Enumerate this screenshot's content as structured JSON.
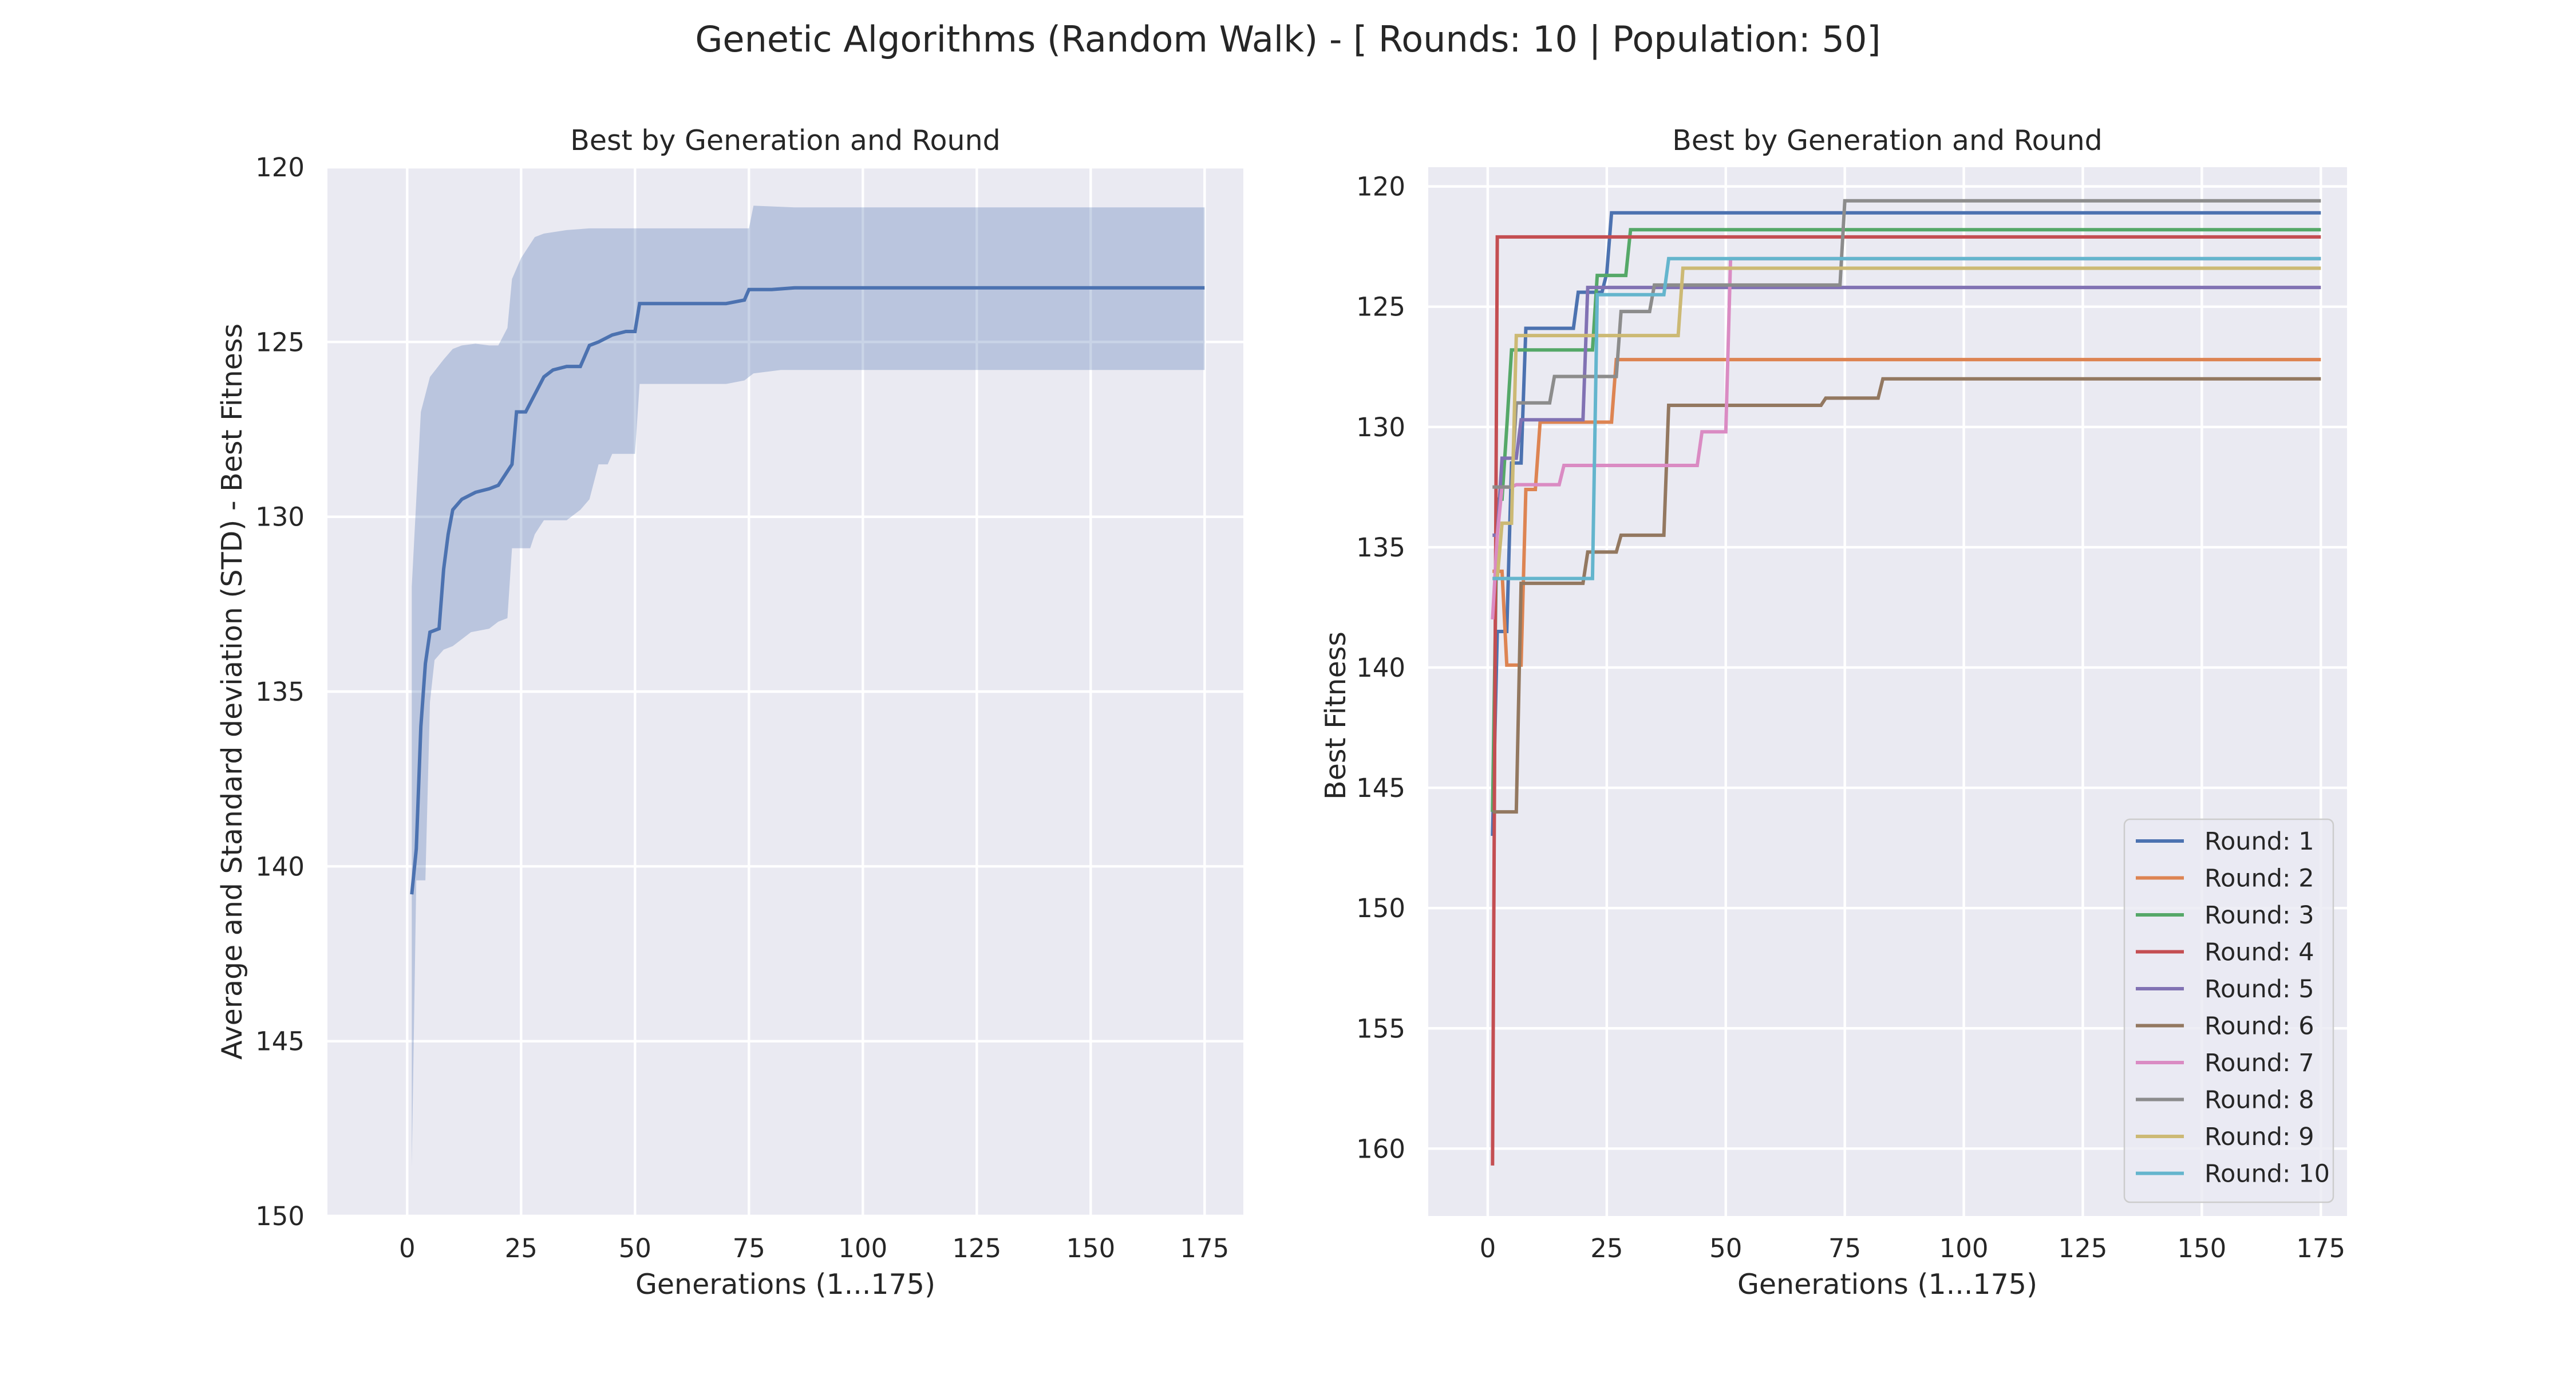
{
  "suptitle": "Genetic Algorithms (Random Walk) - [ Rounds: 10 | Population: 50]",
  "chart_data": [
    {
      "type": "line",
      "title": "Best by Generation and Round",
      "xlabel": "Generations (1...175)",
      "ylabel": "Average and Standard deviation (STD) - Best Fitness",
      "xlim": [
        -17.5,
        183.5
      ],
      "ylim": [
        120,
        150
      ],
      "y_inverted": true,
      "grid": true,
      "xticks": [
        0,
        25,
        50,
        75,
        100,
        125,
        150,
        175
      ],
      "yticks": [
        120,
        125,
        130,
        135,
        140,
        145,
        150
      ],
      "band_color": "#4c72b0",
      "series": [
        {
          "color": "#4c72b0",
          "points": [
            [
              1,
              140.8
            ],
            [
              2,
              139.5
            ],
            [
              3,
              136.0
            ],
            [
              4,
              134.2
            ],
            [
              5,
              133.3
            ],
            [
              7,
              133.2
            ],
            [
              8,
              131.5
            ],
            [
              9,
              130.5
            ],
            [
              10,
              129.8
            ],
            [
              12,
              129.5
            ],
            [
              15,
              129.3
            ],
            [
              18,
              129.2
            ],
            [
              20,
              129.1
            ],
            [
              22,
              128.7
            ],
            [
              23,
              128.5
            ],
            [
              24,
              127.0
            ],
            [
              26,
              127.0
            ],
            [
              28,
              126.5
            ],
            [
              30,
              126.0
            ],
            [
              32,
              125.8
            ],
            [
              35,
              125.7
            ],
            [
              38,
              125.7
            ],
            [
              40,
              125.1
            ],
            [
              42,
              125.0
            ],
            [
              45,
              124.8
            ],
            [
              48,
              124.7
            ],
            [
              50,
              124.7
            ],
            [
              51,
              123.9
            ],
            [
              60,
              123.9
            ],
            [
              70,
              123.9
            ],
            [
              74,
              123.8
            ],
            [
              75,
              123.5
            ],
            [
              80,
              123.5
            ],
            [
              85,
              123.45
            ],
            [
              100,
              123.45
            ],
            [
              125,
              123.45
            ],
            [
              150,
              123.45
            ],
            [
              175,
              123.45
            ]
          ],
          "band_upper": [
            [
              1,
              148.6
            ],
            [
              2,
              140.4
            ],
            [
              4,
              140.4
            ],
            [
              5,
              135.3
            ],
            [
              6,
              134.1
            ],
            [
              8,
              133.8
            ],
            [
              10,
              133.7
            ],
            [
              14,
              133.3
            ],
            [
              18,
              133.2
            ],
            [
              20,
              133.0
            ],
            [
              22,
              132.9
            ],
            [
              23,
              130.9
            ],
            [
              27,
              130.9
            ],
            [
              28,
              130.5
            ],
            [
              30,
              130.1
            ],
            [
              35,
              130.1
            ],
            [
              38,
              129.8
            ],
            [
              40,
              129.5
            ],
            [
              42,
              128.5
            ],
            [
              44,
              128.5
            ],
            [
              45,
              128.2
            ],
            [
              48,
              128.2
            ],
            [
              50,
              128.2
            ],
            [
              51,
              126.2
            ],
            [
              60,
              126.2
            ],
            [
              70,
              126.2
            ],
            [
              74,
              126.1
            ],
            [
              76,
              125.9
            ],
            [
              82,
              125.8
            ],
            [
              100,
              125.8
            ],
            [
              125,
              125.8
            ],
            [
              150,
              125.8
            ],
            [
              175,
              125.8
            ]
          ],
          "band_lower": [
            [
              1,
              132.0
            ],
            [
              3,
              127.0
            ],
            [
              5,
              126.0
            ],
            [
              8,
              125.5
            ],
            [
              10,
              125.2
            ],
            [
              12,
              125.1
            ],
            [
              15,
              125.05
            ],
            [
              18,
              125.1
            ],
            [
              20,
              125.1
            ],
            [
              22,
              124.6
            ],
            [
              23,
              123.2
            ],
            [
              25,
              122.6
            ],
            [
              28,
              122.0
            ],
            [
              30,
              121.9
            ],
            [
              35,
              121.8
            ],
            [
              40,
              121.75
            ],
            [
              45,
              121.75
            ],
            [
              50,
              121.75
            ],
            [
              75,
              121.75
            ],
            [
              76,
              121.1
            ],
            [
              85,
              121.15
            ],
            [
              100,
              121.15
            ],
            [
              125,
              121.15
            ],
            [
              150,
              121.15
            ],
            [
              175,
              121.15
            ]
          ]
        }
      ]
    },
    {
      "type": "line",
      "title": "Best by Generation and Round",
      "xlabel": "Generations (1...175)",
      "ylabel": "Best Fitness",
      "xlim": [
        -12.5,
        180.5
      ],
      "ylim": [
        119.2,
        162.8
      ],
      "y_inverted": true,
      "grid": true,
      "legend": "bottom-right",
      "xticks": [
        0,
        25,
        50,
        75,
        100,
        125,
        150,
        175
      ],
      "yticks": [
        120,
        125,
        130,
        135,
        140,
        145,
        150,
        155,
        160
      ],
      "series": [
        {
          "name": "Round: 1",
          "color": "#4c72b0",
          "points": [
            [
              1,
              147
            ],
            [
              2,
              138.5
            ],
            [
              4,
              138.5
            ],
            [
              5,
              131.5
            ],
            [
              7,
              131.5
            ],
            [
              8,
              125.9
            ],
            [
              18,
              125.9
            ],
            [
              19,
              124.4
            ],
            [
              24,
              124.4
            ],
            [
              25,
              123.6
            ],
            [
              26,
              121.1
            ],
            [
              175,
              121.1
            ]
          ]
        },
        {
          "name": "Round: 2",
          "color": "#dd8452",
          "points": [
            [
              1,
              136
            ],
            [
              3,
              136
            ],
            [
              4,
              139.9
            ],
            [
              7,
              139.9
            ],
            [
              8,
              132.6
            ],
            [
              10,
              132.6
            ],
            [
              11,
              129.8
            ],
            [
              26,
              129.8
            ],
            [
              27,
              127.2
            ],
            [
              175,
              127.2
            ]
          ]
        },
        {
          "name": "Round: 3",
          "color": "#55a868",
          "points": [
            [
              1,
              146
            ],
            [
              2,
              133
            ],
            [
              3,
              133
            ],
            [
              4,
              130
            ],
            [
              5,
              126.8
            ],
            [
              22,
              126.8
            ],
            [
              23,
              123.7
            ],
            [
              29,
              123.7
            ],
            [
              30,
              121.8
            ],
            [
              175,
              121.8
            ]
          ]
        },
        {
          "name": "Round: 4",
          "color": "#c44e52",
          "points": [
            [
              1,
              160.7
            ],
            [
              2,
              122.1
            ],
            [
              175,
              122.1
            ]
          ]
        },
        {
          "name": "Round: 5",
          "color": "#8172b3",
          "points": [
            [
              1,
              134.5
            ],
            [
              2,
              134.5
            ],
            [
              3,
              131.3
            ],
            [
              6,
              131.3
            ],
            [
              7,
              129.7
            ],
            [
              20,
              129.7
            ],
            [
              21,
              124.2
            ],
            [
              175,
              124.2
            ]
          ]
        },
        {
          "name": "Round: 6",
          "color": "#937860",
          "points": [
            [
              1,
              146
            ],
            [
              6,
              146
            ],
            [
              7,
              136.5
            ],
            [
              20,
              136.5
            ],
            [
              21,
              135.2
            ],
            [
              27,
              135.2
            ],
            [
              28,
              134.5
            ],
            [
              37,
              134.5
            ],
            [
              38,
              129.1
            ],
            [
              70,
              129.1
            ],
            [
              71,
              128.8
            ],
            [
              82,
              128.8
            ],
            [
              83,
              128.0
            ],
            [
              175,
              128.0
            ]
          ]
        },
        {
          "name": "Round: 7",
          "color": "#da8bc3",
          "points": [
            [
              1,
              138
            ],
            [
              2,
              134.5
            ],
            [
              3,
              132.5
            ],
            [
              5,
              132.5
            ],
            [
              6,
              132.4
            ],
            [
              15,
              132.4
            ],
            [
              16,
              131.6
            ],
            [
              44,
              131.6
            ],
            [
              45,
              130.2
            ],
            [
              50,
              130.2
            ],
            [
              51,
              123
            ],
            [
              175,
              123
            ]
          ]
        },
        {
          "name": "Round: 8",
          "color": "#8c8c8c",
          "points": [
            [
              1,
              132.5
            ],
            [
              5,
              132.5
            ],
            [
              6,
              129.0
            ],
            [
              13,
              129.0
            ],
            [
              14,
              127.9
            ],
            [
              27,
              127.9
            ],
            [
              28,
              125.2
            ],
            [
              34,
              125.2
            ],
            [
              35,
              124.1
            ],
            [
              74,
              124.1
            ],
            [
              75,
              120.6
            ],
            [
              175,
              120.6
            ]
          ]
        },
        {
          "name": "Round: 9",
          "color": "#ccb974",
          "points": [
            [
              1,
              136.3
            ],
            [
              2,
              136.3
            ],
            [
              3,
              134.0
            ],
            [
              5,
              134.0
            ],
            [
              6,
              126.2
            ],
            [
              40,
              126.2
            ],
            [
              41,
              123.4
            ],
            [
              175,
              123.4
            ]
          ]
        },
        {
          "name": "Round: 10",
          "color": "#64b5cd",
          "points": [
            [
              1,
              136.3
            ],
            [
              22,
              136.3
            ],
            [
              23,
              124.5
            ],
            [
              37,
              124.5
            ],
            [
              38,
              123.0
            ],
            [
              175,
              123.0
            ]
          ]
        }
      ]
    }
  ]
}
